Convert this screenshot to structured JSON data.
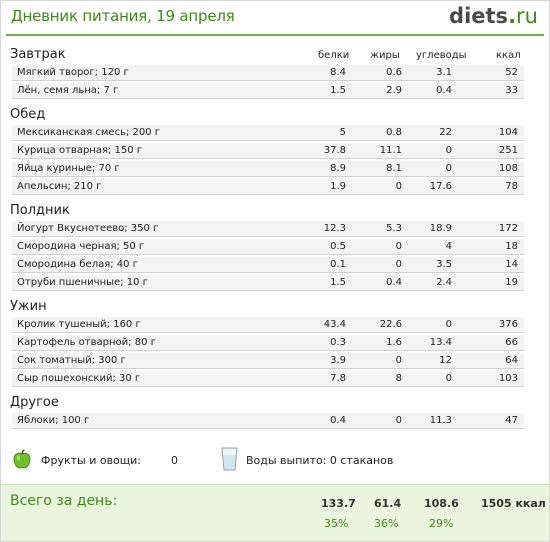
{
  "header": {
    "title": "Дневник питания, 19 апреля",
    "logo_main": "diets",
    "logo_dot": ".",
    "logo_tld": "ru"
  },
  "columns": {
    "protein": "белки",
    "fat": "жиры",
    "carbs": "углеводы",
    "kcal": "ккал"
  },
  "sections": [
    {
      "title": "Завтрак",
      "items": [
        {
          "name": "Мягкий творог; 120 г",
          "protein": "8.4",
          "fat": "0.6",
          "carbs": "3.1",
          "kcal": "52"
        },
        {
          "name": "Лён, семя льна; 7 г",
          "protein": "1.5",
          "fat": "2.9",
          "carbs": "0.4",
          "kcal": "33"
        }
      ]
    },
    {
      "title": "Обед",
      "items": [
        {
          "name": "Мексиканская смесь; 200 г",
          "protein": "5",
          "fat": "0.8",
          "carbs": "22",
          "kcal": "104"
        },
        {
          "name": "Курица отварная; 150 г",
          "protein": "37.8",
          "fat": "11.1",
          "carbs": "0",
          "kcal": "251"
        },
        {
          "name": "Яйца куриные; 70 г",
          "protein": "8.9",
          "fat": "8.1",
          "carbs": "0",
          "kcal": "108"
        },
        {
          "name": "Апельсин; 210 г",
          "protein": "1.9",
          "fat": "0",
          "carbs": "17.6",
          "kcal": "78"
        }
      ]
    },
    {
      "title": "Полдник",
      "items": [
        {
          "name": "Йогурт Вкуснотеево; 350 г",
          "protein": "12.3",
          "fat": "5.3",
          "carbs": "18.9",
          "kcal": "172"
        },
        {
          "name": "Смородина черная; 50 г",
          "protein": "0.5",
          "fat": "0",
          "carbs": "4",
          "kcal": "18"
        },
        {
          "name": "Смородина белая; 40 г",
          "protein": "0.1",
          "fat": "0",
          "carbs": "3.5",
          "kcal": "14"
        },
        {
          "name": "Отруби пшеничные; 10 г",
          "protein": "1.5",
          "fat": "0.4",
          "carbs": "2.4",
          "kcal": "19"
        }
      ]
    },
    {
      "title": "Ужин",
      "items": [
        {
          "name": "Кролик тушеный; 160 г",
          "protein": "43.4",
          "fat": "22.6",
          "carbs": "0",
          "kcal": "376"
        },
        {
          "name": "Картофель отварной; 80 г",
          "protein": "0.3",
          "fat": "1.6",
          "carbs": "13.4",
          "kcal": "66"
        },
        {
          "name": "Сок томатный; 300 г",
          "protein": "3.9",
          "fat": "0",
          "carbs": "12",
          "kcal": "64"
        },
        {
          "name": "Сыр пошехонский; 30 г",
          "protein": "7.8",
          "fat": "8",
          "carbs": "0",
          "kcal": "103"
        }
      ]
    },
    {
      "title": "Другое",
      "items": [
        {
          "name": "Яблоки; 100 г",
          "protein": "0.4",
          "fat": "0",
          "carbs": "11.3",
          "kcal": "47"
        }
      ]
    }
  ],
  "extras": {
    "fruit_label": "Фрукты и овощи:",
    "fruit_value": "0",
    "water_label": "Воды выпито: 0 стаканов"
  },
  "total": {
    "label": "Всего за день:",
    "protein": "133.7",
    "fat": "61.4",
    "carbs": "108.6",
    "kcal": "1505 ккал",
    "protein_pct": "35%",
    "fat_pct": "36%",
    "carbs_pct": "29%"
  },
  "colors": {
    "accent": "#3f8a1a",
    "total_bg": "#e9f5dc"
  }
}
